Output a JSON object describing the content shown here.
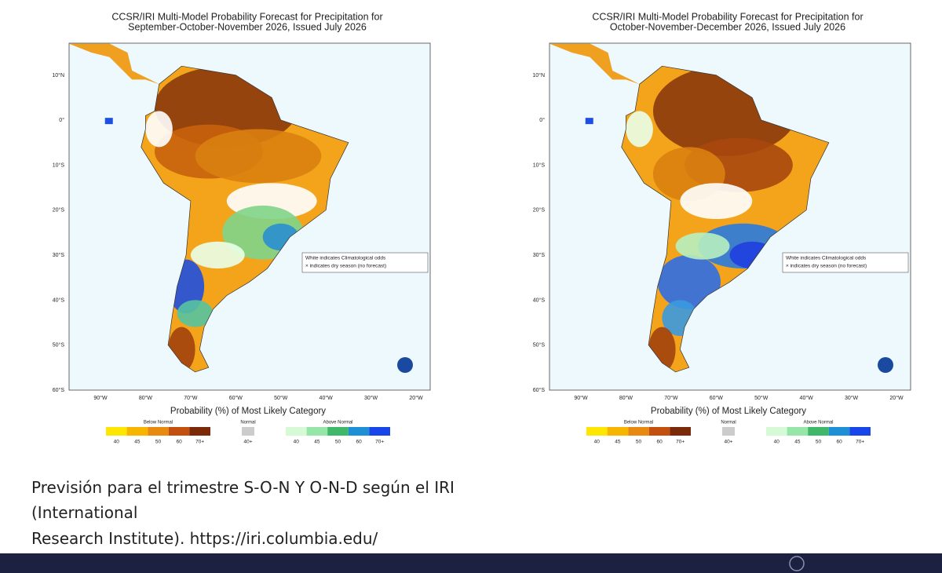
{
  "maps": [
    {
      "title": [
        "CCSR/IRI Multi-Model Probability Forecast for Precipitation for",
        "September-October-November 2026, Issued July 2026"
      ],
      "lat_labels": [
        "10°N",
        "0°",
        "10°S",
        "20°S",
        "30°S",
        "40°S",
        "50°S",
        "60°S"
      ],
      "lon_labels": [
        "90°W",
        "80°W",
        "70°W",
        "60°W",
        "50°W",
        "40°W",
        "30°W",
        "20°W"
      ],
      "note": [
        "White indicates Climatological odds",
        "× indicates dry season (no forecast)"
      ],
      "legend": {
        "title": "Probability (%) of Most Likely Category",
        "groups": [
          {
            "name": "Below Normal",
            "labels": [
              "40",
              "45",
              "50",
              "60",
              "70+"
            ]
          },
          {
            "name": "Normal",
            "labels": [
              "40+"
            ]
          },
          {
            "name": "Above Normal",
            "labels": [
              "40",
              "45",
              "50",
              "60",
              "70+"
            ]
          }
        ]
      }
    },
    {
      "title": [
        "CCSR/IRI Multi-Model Probability Forecast for Precipitation for",
        "October-November-December 2026, Issued July 2026"
      ],
      "lat_labels": [
        "10°N",
        "0°",
        "10°S",
        "20°S",
        "30°S",
        "40°S",
        "50°S",
        "60°S"
      ],
      "lon_labels": [
        "90°W",
        "80°W",
        "70°W",
        "60°W",
        "50°W",
        "40°W",
        "30°W",
        "20°W"
      ],
      "note": [
        "White indicates Climatological odds",
        "× indicates dry season (no forecast)"
      ],
      "legend": {
        "title": "Probability (%) of Most Likely Category",
        "groups": [
          {
            "name": "Below Normal",
            "labels": [
              "40",
              "45",
              "50",
              "60",
              "70+"
            ]
          },
          {
            "name": "Normal",
            "labels": [
              "40+"
            ]
          },
          {
            "name": "Above Normal",
            "labels": [
              "40",
              "45",
              "50",
              "60",
              "70+"
            ]
          }
        ]
      }
    }
  ],
  "caption": [
    "Previsión para el trimestre S-O-N Y O-N-D según el IRI",
    "(International",
    "Research Institute). https://iri.columbia.edu/"
  ]
}
